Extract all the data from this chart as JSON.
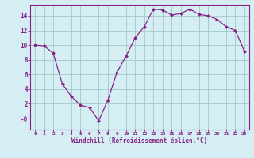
{
  "x": [
    0,
    1,
    2,
    3,
    4,
    5,
    6,
    7,
    8,
    9,
    10,
    11,
    12,
    13,
    14,
    15,
    16,
    17,
    18,
    19,
    20,
    21,
    22,
    23
  ],
  "y": [
    10.0,
    9.9,
    8.9,
    4.7,
    3.0,
    1.8,
    1.5,
    -0.3,
    2.5,
    6.3,
    8.5,
    11.0,
    12.5,
    14.9,
    14.8,
    14.1,
    14.3,
    14.9,
    14.2,
    14.0,
    13.5,
    12.5,
    12.0,
    9.2
  ],
  "line_color": "#882288",
  "marker_color": "#882288",
  "bg_color": "#d4eef4",
  "grid_color": "#aacccc",
  "xlabel": "Windchill (Refroidissement éolien,°C)",
  "xlabel_color": "#882288",
  "tick_color": "#882288",
  "ylim": [
    -1.5,
    15.5
  ],
  "yticks": [
    0,
    2,
    4,
    6,
    8,
    10,
    12,
    14
  ],
  "ytick_labels": [
    "-0",
    "2",
    "4",
    "6",
    "8",
    "10",
    "12",
    "14"
  ],
  "xlim": [
    -0.5,
    23.5
  ],
  "font_family": "monospace"
}
